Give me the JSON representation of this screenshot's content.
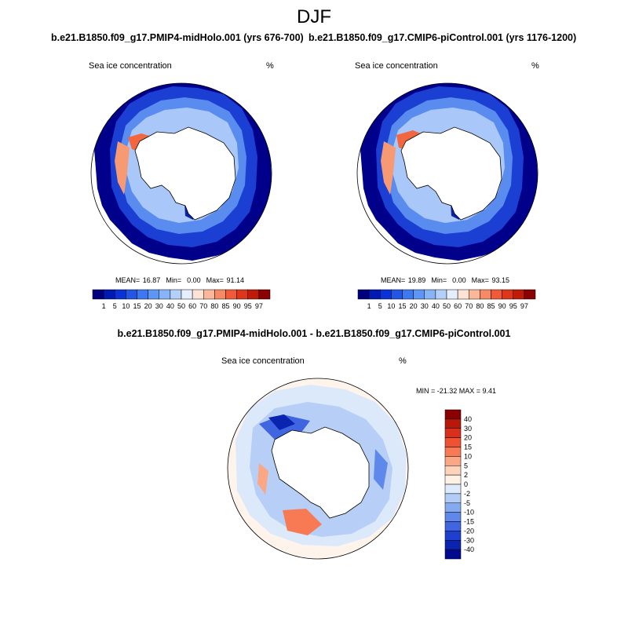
{
  "figure": {
    "title": "DJF"
  },
  "panels": [
    {
      "title": "b.e21.B1850.f09_g17.PMIP4-midHolo.001 (yrs 676-700)",
      "left_label": "Sea ice concentration",
      "right_label": "%",
      "stats": {
        "mean_label": "MEAN=",
        "mean": "16.87",
        "min_label": "Min=",
        "min": "0.00",
        "max_label": "Max=",
        "max": "91.14"
      }
    },
    {
      "title": "b.e21.B1850.f09_g17.CMIP6-piControl.001 (yrs 1176-1200)",
      "left_label": "Sea ice concentration",
      "right_label": "%",
      "stats": {
        "mean_label": "MEAN=",
        "mean": "19.89",
        "min_label": "Min=",
        "min": "0.00",
        "max_label": "Max=",
        "max": "93.15"
      }
    },
    {
      "title": "b.e21.B1850.f09_g17.PMIP4-midHolo.001 - b.e21.B1850.f09_g17.CMIP6-piControl.001",
      "left_label": "Sea ice concentration",
      "right_label": "%",
      "minmax": "MIN = -21.32 MAX =   9.41"
    }
  ],
  "colorbar_abs": {
    "labels": [
      "1",
      "5",
      "10",
      "15",
      "20",
      "30",
      "40",
      "50",
      "60",
      "70",
      "80",
      "85",
      "90",
      "95",
      "97"
    ],
    "colors": [
      "#00007f",
      "#0019b3",
      "#0a32d6",
      "#2456e6",
      "#3e78f0",
      "#5e96f5",
      "#86b4f7",
      "#b3d0fa",
      "#e4eefd",
      "#fde3d6",
      "#fbb79a",
      "#f78a66",
      "#f05a38",
      "#dd3618",
      "#c01a08",
      "#8b0000"
    ]
  },
  "colorbar_diff": {
    "labels": [
      "40",
      "30",
      "20",
      "15",
      "10",
      "5",
      "2",
      "0",
      "-2",
      "-5",
      "-10",
      "-15",
      "-20",
      "-30",
      "-40"
    ],
    "colors": [
      "#8b0000",
      "#b8180a",
      "#d8301a",
      "#ef5230",
      "#f77a54",
      "#fba684",
      "#fdd3bc",
      "#fff2e4",
      "#ddeafb",
      "#b3ccf5",
      "#86aaf0",
      "#5e88ea",
      "#3f66e0",
      "#1e40cf",
      "#0a24b0",
      "#000a8f"
    ]
  }
}
